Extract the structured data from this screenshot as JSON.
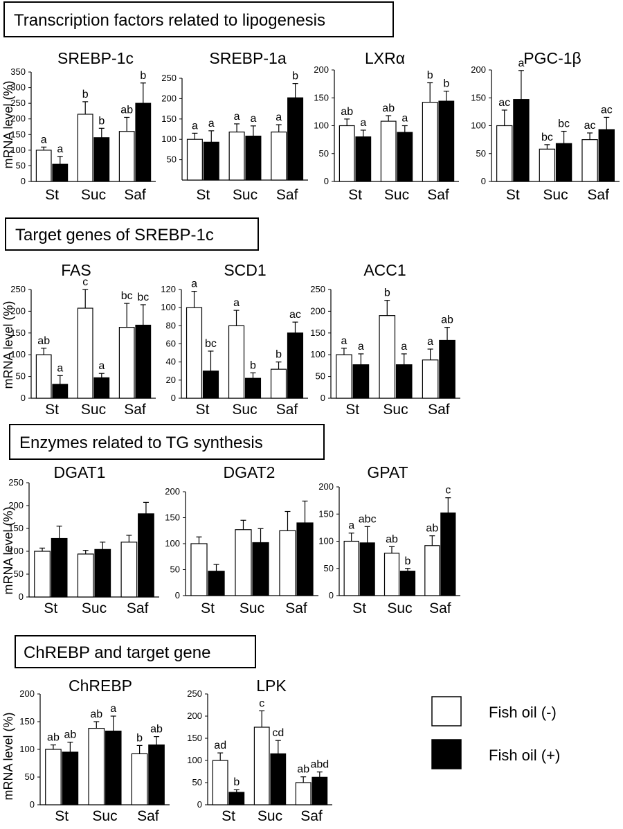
{
  "y_axis_label": "mRNA level (%)",
  "legend": [
    {
      "label": "Fish oil (-)",
      "color": "#ffffff"
    },
    {
      "label": "Fish oil (+)",
      "color": "#000000"
    }
  ],
  "sections": [
    {
      "title": "Transcription factors related to lipogenesis"
    },
    {
      "title": "Target genes of SREBP-1c"
    },
    {
      "title": "Enzymes related to TG synthesis"
    },
    {
      "title": "ChREBP and target gene"
    }
  ],
  "chart_data": [
    {
      "type": "bar",
      "title": "SREBP-1c",
      "categories": [
        "St",
        "Suc",
        "Saf"
      ],
      "ylim": [
        0,
        350
      ],
      "yticks": [
        0,
        50,
        100,
        150,
        200,
        250,
        300,
        350
      ],
      "series": [
        {
          "name": "Fish oil (-)",
          "values": [
            100,
            215,
            160
          ],
          "errors": [
            10,
            40,
            45
          ],
          "letters": [
            "a",
            "b",
            "ab"
          ]
        },
        {
          "name": "Fish oil (+)",
          "values": [
            55,
            140,
            250
          ],
          "errors": [
            25,
            30,
            65
          ],
          "letters": [
            "a",
            "b",
            "b"
          ]
        }
      ]
    },
    {
      "type": "bar",
      "title": "SREBP-1a",
      "categories": [
        "St",
        "Suc",
        "Saf"
      ],
      "ylim": [
        0,
        250
      ],
      "yticks": [
        50,
        100,
        150,
        200,
        250
      ],
      "series": [
        {
          "name": "Fish oil (-)",
          "values": [
            100,
            118,
            118
          ],
          "errors": [
            15,
            20,
            18
          ],
          "letters": [
            "a",
            "a",
            "a"
          ]
        },
        {
          "name": "Fish oil (+)",
          "values": [
            93,
            108,
            202
          ],
          "errors": [
            28,
            25,
            35
          ],
          "letters": [
            "a",
            "a",
            "b"
          ]
        }
      ]
    },
    {
      "type": "bar",
      "title": "LXRα",
      "categories": [
        "St",
        "Suc",
        "Saf"
      ],
      "ylim": [
        0,
        200
      ],
      "yticks": [
        0,
        50,
        100,
        150,
        200
      ],
      "series": [
        {
          "name": "Fish oil (-)",
          "values": [
            100,
            108,
            142
          ],
          "errors": [
            12,
            10,
            35
          ],
          "letters": [
            "ab",
            "ab",
            "b"
          ]
        },
        {
          "name": "Fish oil (+)",
          "values": [
            80,
            88,
            144
          ],
          "errors": [
            12,
            12,
            18
          ],
          "letters": [
            "a",
            "a",
            "b"
          ]
        }
      ]
    },
    {
      "type": "bar",
      "title": "PGC-1β",
      "categories": [
        "St",
        "Suc",
        "Saf"
      ],
      "ylim": [
        0,
        200
      ],
      "yticks": [
        0,
        50,
        100,
        150,
        200
      ],
      "series": [
        {
          "name": "Fish oil (-)",
          "values": [
            100,
            58,
            75
          ],
          "errors": [
            28,
            8,
            12
          ],
          "letters": [
            "ac",
            "bc",
            "ac"
          ]
        },
        {
          "name": "Fish oil (+)",
          "values": [
            147,
            68,
            93
          ],
          "errors": [
            52,
            22,
            22
          ],
          "letters": [
            "a",
            "bc",
            "ac"
          ]
        }
      ]
    },
    {
      "type": "bar",
      "title": "FAS",
      "categories": [
        "St",
        "Suc",
        "Saf"
      ],
      "ylim": [
        0,
        250
      ],
      "yticks": [
        0,
        50,
        100,
        150,
        200,
        250
      ],
      "series": [
        {
          "name": "Fish oil (-)",
          "values": [
            100,
            207,
            163
          ],
          "errors": [
            15,
            43,
            55
          ],
          "letters": [
            "ab",
            "c",
            "bc"
          ]
        },
        {
          "name": "Fish oil (+)",
          "values": [
            32,
            47,
            168
          ],
          "errors": [
            20,
            10,
            47
          ],
          "letters": [
            "a",
            "a",
            "bc"
          ]
        }
      ]
    },
    {
      "type": "bar",
      "title": "SCD1",
      "categories": [
        "St",
        "Suc",
        "Saf"
      ],
      "ylim": [
        0,
        120
      ],
      "yticks": [
        0,
        20,
        40,
        60,
        80,
        100,
        120
      ],
      "series": [
        {
          "name": "Fish oil (-)",
          "values": [
            100,
            80,
            32
          ],
          "errors": [
            18,
            17,
            8
          ],
          "letters": [
            "a",
            "a",
            "b"
          ]
        },
        {
          "name": "Fish oil (+)",
          "values": [
            30,
            22,
            72
          ],
          "errors": [
            22,
            6,
            12
          ],
          "letters": [
            "bc",
            "b",
            "ac"
          ]
        }
      ]
    },
    {
      "type": "bar",
      "title": "ACC1",
      "categories": [
        "St",
        "Suc",
        "Saf"
      ],
      "ylim": [
        0,
        250
      ],
      "yticks": [
        0,
        50,
        100,
        150,
        200,
        250
      ],
      "series": [
        {
          "name": "Fish oil (-)",
          "values": [
            100,
            190,
            88
          ],
          "errors": [
            15,
            35,
            25
          ],
          "letters": [
            "a",
            "b",
            "a"
          ]
        },
        {
          "name": "Fish oil (+)",
          "values": [
            77,
            77,
            133
          ],
          "errors": [
            25,
            25,
            30
          ],
          "letters": [
            "a",
            "a",
            "ab"
          ]
        }
      ]
    },
    {
      "type": "bar",
      "title": "DGAT1",
      "categories": [
        "St",
        "Suc",
        "Saf"
      ],
      "ylim": [
        0,
        250
      ],
      "yticks": [
        0,
        50,
        100,
        150,
        200,
        250
      ],
      "series": [
        {
          "name": "Fish oil (-)",
          "values": [
            100,
            94,
            120
          ],
          "errors": [
            7,
            8,
            15
          ],
          "letters": [
            "",
            "",
            ""
          ]
        },
        {
          "name": "Fish oil (+)",
          "values": [
            128,
            104,
            182
          ],
          "errors": [
            27,
            16,
            25
          ],
          "letters": [
            "",
            "",
            ""
          ]
        }
      ]
    },
    {
      "type": "bar",
      "title": "DGAT2",
      "categories": [
        "St",
        "Suc",
        "Saf"
      ],
      "ylim": [
        0,
        200
      ],
      "yticks": [
        0,
        50,
        100,
        150,
        200
      ],
      "series": [
        {
          "name": "Fish oil (-)",
          "values": [
            100,
            127,
            125
          ],
          "errors": [
            13,
            18,
            37
          ],
          "letters": [
            "",
            "",
            ""
          ]
        },
        {
          "name": "Fish oil (+)",
          "values": [
            47,
            102,
            140
          ],
          "errors": [
            13,
            27,
            42
          ],
          "letters": [
            "",
            "",
            ""
          ]
        }
      ]
    },
    {
      "type": "bar",
      "title": "GPAT",
      "categories": [
        "St",
        "Suc",
        "Saf"
      ],
      "ylim": [
        0,
        200
      ],
      "yticks": [
        0,
        50,
        100,
        150,
        200
      ],
      "series": [
        {
          "name": "Fish oil (-)",
          "values": [
            100,
            78,
            92
          ],
          "errors": [
            15,
            12,
            18
          ],
          "letters": [
            "a",
            "ab",
            "ab"
          ]
        },
        {
          "name": "Fish oil (+)",
          "values": [
            97,
            45,
            152
          ],
          "errors": [
            30,
            5,
            28
          ],
          "letters": [
            "abc",
            "b",
            "c"
          ]
        }
      ]
    },
    {
      "type": "bar",
      "title": "ChREBP",
      "categories": [
        "St",
        "Suc",
        "Saf"
      ],
      "ylim": [
        0,
        200
      ],
      "yticks": [
        0,
        50,
        100,
        150,
        200
      ],
      "series": [
        {
          "name": "Fish oil (-)",
          "values": [
            100,
            138,
            92
          ],
          "errors": [
            8,
            12,
            15
          ],
          "letters": [
            "ab",
            "ab",
            "b"
          ]
        },
        {
          "name": "Fish oil (+)",
          "values": [
            95,
            133,
            108
          ],
          "errors": [
            18,
            27,
            15
          ],
          "letters": [
            "ab",
            "a",
            "ab"
          ]
        }
      ]
    },
    {
      "type": "bar",
      "title": "LPK",
      "categories": [
        "St",
        "Suc",
        "Saf"
      ],
      "ylim": [
        0,
        250
      ],
      "yticks": [
        0,
        50,
        100,
        150,
        200,
        250
      ],
      "series": [
        {
          "name": "Fish oil (-)",
          "values": [
            100,
            175,
            50
          ],
          "errors": [
            17,
            37,
            13
          ],
          "letters": [
            "ad",
            "c",
            "ab"
          ]
        },
        {
          "name": "Fish oil (+)",
          "values": [
            28,
            115,
            62
          ],
          "errors": [
            6,
            30,
            12
          ],
          "letters": [
            "b",
            "cd",
            "abd"
          ]
        }
      ]
    }
  ]
}
